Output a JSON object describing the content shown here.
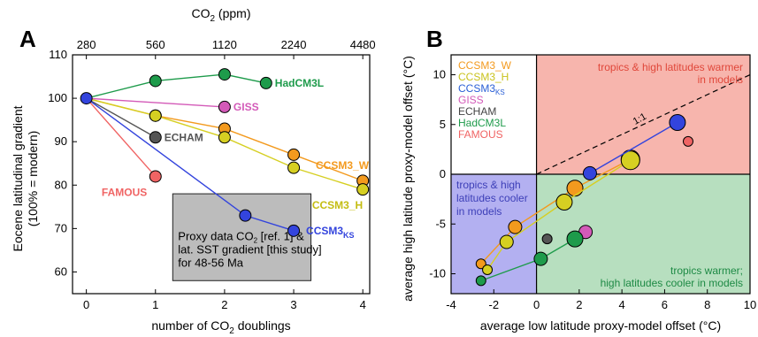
{
  "chart_data": [
    {
      "type": "line",
      "panel_label": "A",
      "xlabel": "number of CO",
      "xlabel_sub": "2",
      "xlabel_tail": " doublings",
      "ylabel_line1": "Eocene latitudinal gradient",
      "ylabel_line2": "(100% = modern)",
      "top_axis_label": "CO",
      "top_axis_sub": "2",
      "top_axis_tail": " (ppm)",
      "xlim": [
        -0.2,
        4.1
      ],
      "ylim": [
        55,
        110
      ],
      "xticks": [
        0,
        1,
        2,
        3,
        4
      ],
      "yticks": [
        60,
        70,
        80,
        90,
        100,
        110
      ],
      "top_ticks": [
        {
          "x": 0,
          "label": "280"
        },
        {
          "x": 1,
          "label": "560"
        },
        {
          "x": 2,
          "label": "1120"
        },
        {
          "x": 3,
          "label": "2240"
        },
        {
          "x": 4,
          "label": "4480"
        }
      ],
      "series": [
        {
          "name": "HadCM3L",
          "color": "#1e9b4b",
          "fill": "#1e9b4b",
          "points": [
            [
              0,
              100
            ],
            [
              1,
              104
            ],
            [
              2,
              105.5
            ],
            [
              2.6,
              103.5
            ]
          ]
        },
        {
          "name": "GISS",
          "color": "#d35ab8",
          "fill": "#d35ab8",
          "points": [
            [
              0,
              100
            ],
            [
              2,
              98
            ]
          ]
        },
        {
          "name": "ECHAM",
          "color": "#555555",
          "fill": "#555555",
          "points": [
            [
              0,
              100
            ],
            [
              1,
              91
            ]
          ]
        },
        {
          "name": "CCSM3_W",
          "color": "#f39a1e",
          "fill": "#f39a1e",
          "points": [
            [
              0,
              100
            ],
            [
              1,
              96
            ],
            [
              2,
              93
            ],
            [
              3,
              87
            ],
            [
              4,
              81
            ]
          ]
        },
        {
          "name": "CCSM3_H",
          "color": "#d6cf22",
          "fill": "#d6cf22",
          "points": [
            [
              0,
              100
            ],
            [
              1,
              96
            ],
            [
              2,
              91
            ],
            [
              3,
              84
            ],
            [
              4,
              79
            ]
          ]
        },
        {
          "name": "CCSM3",
          "name_sub": "KS",
          "color": "#3344dd",
          "fill": "#3344dd",
          "points": [
            [
              0,
              100
            ],
            [
              2.3,
              73
            ],
            [
              3,
              69.5
            ]
          ]
        },
        {
          "name": "FAMOUS",
          "color": "#f06464",
          "fill": "#f06464",
          "points": [
            [
              0,
              100
            ],
            [
              1,
              82
            ]
          ]
        }
      ],
      "proxy_box": {
        "text_line1": "Proxy data CO",
        "text_line1_sub": "2",
        "text_line1_tail": " [ref. 1] &",
        "text_line2": "lat. SST gradient [this study]",
        "text_line3": "for 48-56 Ma",
        "x_range": [
          1.25,
          3.25
        ],
        "y_range": [
          58,
          78
        ],
        "fill": "#bcbcbc"
      }
    },
    {
      "type": "scatter",
      "panel_label": "B",
      "xlabel": "average low latitude proxy-model offset (°C)",
      "ylabel": "average high latitude proxy-model offset (°C)",
      "xlim": [
        -4,
        10
      ],
      "ylim": [
        -12,
        12
      ],
      "xticks": [
        -4,
        -2,
        0,
        2,
        4,
        6,
        8,
        10
      ],
      "yticks": [
        -10,
        -5,
        0,
        5,
        10
      ],
      "one_to_one_label": "1:1",
      "quadrants": {
        "top_right": {
          "label_line1": "tropics & high latitudes warmer",
          "label_line2": "in models",
          "color": "#f7b5ad",
          "text_color": "#e0473a"
        },
        "bottom_left": {
          "label_line1": "tropics & high",
          "label_line2": "latitudes cooler",
          "label_line3": "in models",
          "color": "#b3b0f1",
          "text_color": "#3d3fb8"
        },
        "bottom_right": {
          "label_line1": "tropics warmer;",
          "label_line2": "high latitudes cooler in models",
          "color": "#b7dfbf",
          "text_color": "#1e8a45"
        }
      },
      "legend": [
        {
          "name": "CCSM3_W",
          "color": "#f39a1e"
        },
        {
          "name": "CCSM3_H",
          "color": "#c9c21c"
        },
        {
          "name": "CCSM3",
          "sub": "KS",
          "color": "#2a5fd6"
        },
        {
          "name": "GISS",
          "color": "#d35ab8"
        },
        {
          "name": "ECHAM",
          "color": "#444444"
        },
        {
          "name": "HadCM3L",
          "color": "#1e9b4b"
        },
        {
          "name": "FAMOUS",
          "color": "#f06464"
        }
      ],
      "series": [
        {
          "name": "CCSM3_W",
          "color": "#f39a1e",
          "points": [
            [
              -2.6,
              -9.0,
              1
            ],
            [
              -1.0,
              -5.3,
              2
            ],
            [
              1.8,
              -1.4,
              3
            ],
            [
              4.4,
              1.5,
              4
            ]
          ]
        },
        {
          "name": "CCSM3_H",
          "color": "#d6cf22",
          "points": [
            [
              -2.3,
              -9.6,
              1
            ],
            [
              -1.4,
              -6.8,
              2
            ],
            [
              1.3,
              -2.8,
              3
            ],
            [
              4.4,
              1.4,
              4
            ]
          ]
        },
        {
          "name": "CCSM3_KS",
          "color": "#3344dd",
          "points": [
            [
              2.5,
              0.1,
              2
            ],
            [
              6.6,
              5.2,
              3
            ]
          ]
        },
        {
          "name": "GISS",
          "color": "#d35ab8",
          "points": [
            [
              2.3,
              -5.8,
              2
            ]
          ]
        },
        {
          "name": "ECHAM",
          "color": "#555555",
          "points": [
            [
              0.5,
              -6.5,
              1
            ]
          ]
        },
        {
          "name": "HadCM3L",
          "color": "#1e9b4b",
          "points": [
            [
              -2.6,
              -10.7,
              1
            ],
            [
              0.2,
              -8.5,
              2
            ],
            [
              1.8,
              -6.5,
              3
            ]
          ]
        },
        {
          "name": "FAMOUS",
          "color": "#f06464",
          "points": [
            [
              7.1,
              3.3,
              1
            ]
          ]
        }
      ]
    }
  ]
}
